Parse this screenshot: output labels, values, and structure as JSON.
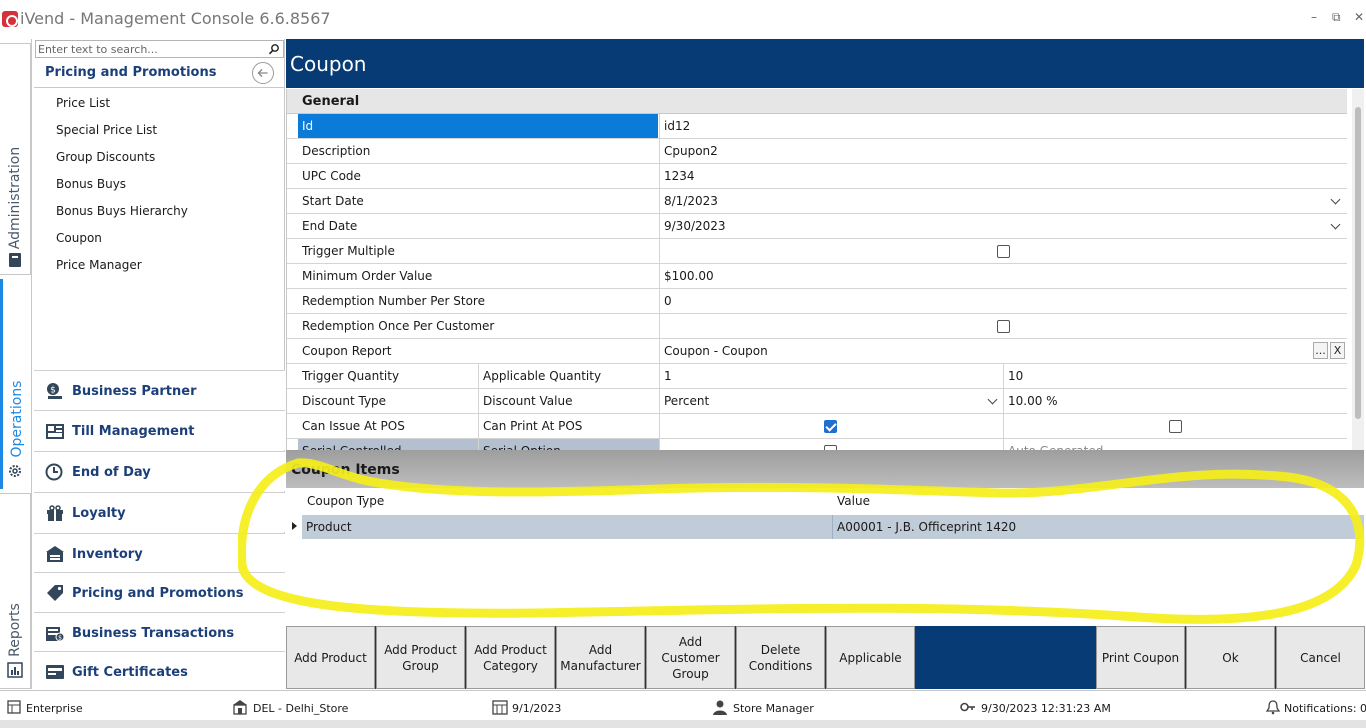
{
  "window": {
    "title": "iVend - Management Console  6.6.8567",
    "minimize_glyph": "–",
    "restore_glyph": "⧉",
    "close_glyph": "✕"
  },
  "vertical_tabs": {
    "administration": "Administration",
    "operations": "Operations",
    "reports": "Reports"
  },
  "sidebar": {
    "search_placeholder": "Enter text to search...",
    "header": "Pricing and Promotions",
    "items": [
      "Price List",
      "Special Price List",
      "Group Discounts",
      "Bonus Buys",
      "Bonus Buys Hierarchy",
      "Coupon",
      "Price Manager"
    ],
    "modules": [
      {
        "label": "Business Partner",
        "icon": "business-partner-icon"
      },
      {
        "label": "Till Management",
        "icon": "till-management-icon"
      },
      {
        "label": "End of Day",
        "icon": "clock-icon"
      },
      {
        "label": "Loyalty",
        "icon": "gift-icon"
      },
      {
        "label": "Inventory",
        "icon": "inventory-icon"
      },
      {
        "label": "Pricing and Promotions",
        "icon": "price-tag-icon"
      },
      {
        "label": "Business Transactions",
        "icon": "transactions-icon"
      },
      {
        "label": "Gift Certificates",
        "icon": "gift-card-icon"
      }
    ]
  },
  "main": {
    "title": "Coupon",
    "group_header": "General",
    "fields": {
      "id": {
        "label": "Id",
        "value": "id12"
      },
      "description": {
        "label": "Description",
        "value": "Cpupon2"
      },
      "upc_code": {
        "label": "UPC Code",
        "value": "1234"
      },
      "start_date": {
        "label": "Start Date",
        "value": "8/1/2023"
      },
      "end_date": {
        "label": "End Date",
        "value": "9/30/2023"
      },
      "trigger_multiple": {
        "label": "Trigger Multiple",
        "checked": false
      },
      "minimum_order_value": {
        "label": "Minimum Order Value",
        "value": "$100.00"
      },
      "redemption_number_per_store": {
        "label": "Redemption Number Per Store",
        "value": "0"
      },
      "redemption_once_per_customer": {
        "label": "Redemption Once Per Customer",
        "checked": false
      },
      "coupon_report": {
        "label": "Coupon Report",
        "value": "Coupon - Coupon",
        "browse": "...",
        "clear": "X"
      },
      "trigger_quantity": {
        "label": "Trigger Quantity",
        "value": "1"
      },
      "applicable_quantity": {
        "label": "Applicable Quantity",
        "value": "10"
      },
      "discount_type": {
        "label": "Discount Type",
        "value": "Percent"
      },
      "discount_value": {
        "label": "Discount Value",
        "value": "10.00 %"
      },
      "can_issue_at_pos": {
        "label": "Can Issue At POS",
        "checked": true
      },
      "can_print_at_pos": {
        "label": "Can Print At POS",
        "checked": false
      },
      "serial_controlled": {
        "label": "Serial Controlled",
        "checked": false
      },
      "serial_option": {
        "label": "Serial Option",
        "value": "Auto Generated"
      }
    }
  },
  "coupon_items": {
    "title": "Coupon Items",
    "columns": [
      "Coupon Type",
      "Value"
    ],
    "rows": [
      {
        "type": "Product",
        "value": "A00001 - J.B. Officeprint 1420"
      }
    ]
  },
  "buttons": {
    "add_product": "Add Product",
    "add_product_group": "Add Product Group",
    "add_product_category": "Add Product Category",
    "add_manufacturer": "Add Manufacturer",
    "add_customer_group": "Add Customer Group",
    "delete_conditions": "Delete Conditions",
    "applicable": "Applicable",
    "print_coupon": "Print Coupon",
    "ok": "Ok",
    "cancel": "Cancel"
  },
  "status_bar": {
    "enterprise": "Enterprise",
    "store": "DEL - Delhi_Store",
    "business_date": "9/1/2023",
    "role": "Store Manager",
    "login_time": "9/30/2023 12:31:23 AM",
    "notifications": "Notifications: 0"
  },
  "colors": {
    "header_blue": "#063b75",
    "selected_row": "#0a7bd8",
    "accent_link": "#1c3f7a",
    "annotation": "#f5ee1a"
  }
}
